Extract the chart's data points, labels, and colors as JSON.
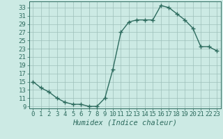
{
  "x": [
    0,
    1,
    2,
    3,
    4,
    5,
    6,
    7,
    8,
    9,
    10,
    11,
    12,
    13,
    14,
    15,
    16,
    17,
    18,
    19,
    20,
    21,
    22,
    23
  ],
  "y": [
    15,
    13.5,
    12.5,
    11,
    10,
    9.5,
    9.5,
    9,
    9,
    11,
    18,
    27,
    29.5,
    30,
    30,
    30,
    33.5,
    33,
    31.5,
    30,
    28,
    23.5,
    23.5,
    22.5
  ],
  "line_color": "#2d6b5e",
  "marker": "+",
  "marker_size": 4,
  "marker_color": "#2d6b5e",
  "bg_color": "#cceae4",
  "grid_color": "#9dbfba",
  "xlabel": "Humidex (Indice chaleur)",
  "xlabel_fontsize": 7.5,
  "xlabel_style": "italic",
  "xlim": [
    -0.5,
    23.5
  ],
  "ylim": [
    8.5,
    34.5
  ],
  "yticks": [
    9,
    11,
    13,
    15,
    17,
    19,
    21,
    23,
    25,
    27,
    29,
    31,
    33
  ],
  "xticks": [
    0,
    1,
    2,
    3,
    4,
    5,
    6,
    7,
    8,
    9,
    10,
    11,
    12,
    13,
    14,
    15,
    16,
    17,
    18,
    19,
    20,
    21,
    22,
    23
  ],
  "xtick_labels": [
    "0",
    "1",
    "2",
    "3",
    "4",
    "5",
    "6",
    "7",
    "8",
    "9",
    "10",
    "11",
    "12",
    "13",
    "14",
    "15",
    "16",
    "17",
    "18",
    "19",
    "20",
    "21",
    "22",
    "23"
  ],
  "tick_fontsize": 6.5,
  "line_width": 1.0
}
